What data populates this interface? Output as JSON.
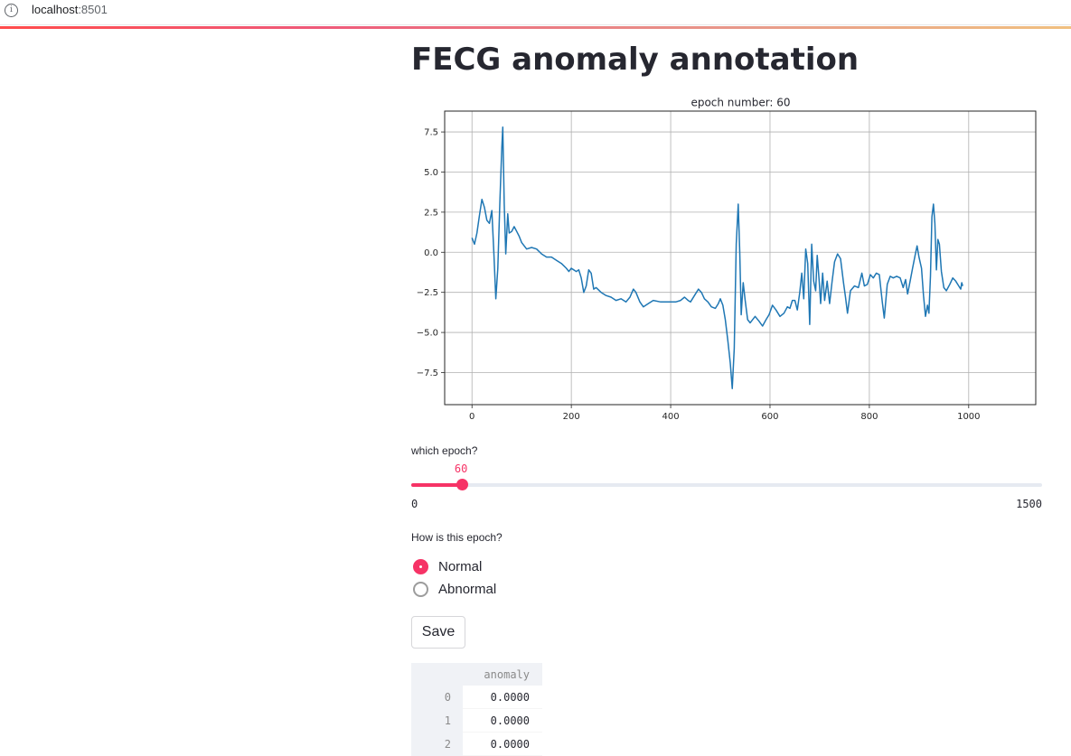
{
  "browser": {
    "url_host": "localhost",
    "url_port": ":8501",
    "info_icon": "info-icon"
  },
  "colors": {
    "accent": "#f63366",
    "line": "#1f77b4"
  },
  "page": {
    "title": "FECG anomaly annotation"
  },
  "chart_data": {
    "type": "line",
    "title": "epoch number: 60",
    "xlabel": "",
    "ylabel": "",
    "xlim": [
      -55,
      1135
    ],
    "ylim": [
      -9.5,
      8.8
    ],
    "xticks": [
      0,
      200,
      400,
      600,
      800,
      1000
    ],
    "yticks": [
      -7.5,
      -5.0,
      -2.5,
      0.0,
      2.5,
      5.0,
      7.5
    ],
    "ytick_labels": [
      "−7.5",
      "−5.0",
      "−2.5",
      "0.0",
      "2.5",
      "5.0",
      "7.5"
    ],
    "grid": true,
    "series": [
      {
        "color": "#1f77b4",
        "points": [
          [
            0,
            0.9
          ],
          [
            5,
            0.5
          ],
          [
            10,
            1.2
          ],
          [
            15,
            2.3
          ],
          [
            20,
            3.3
          ],
          [
            25,
            2.8
          ],
          [
            30,
            2.0
          ],
          [
            35,
            1.8
          ],
          [
            40,
            2.6
          ],
          [
            44,
            0.0
          ],
          [
            48,
            -2.9
          ],
          [
            52,
            -1.0
          ],
          [
            56,
            3.0
          ],
          [
            60,
            6.5
          ],
          [
            62,
            7.8
          ],
          [
            65,
            3.0
          ],
          [
            68,
            -0.1
          ],
          [
            72,
            2.4
          ],
          [
            75,
            1.2
          ],
          [
            80,
            1.3
          ],
          [
            85,
            1.6
          ],
          [
            90,
            1.3
          ],
          [
            95,
            1.0
          ],
          [
            100,
            0.6
          ],
          [
            110,
            0.2
          ],
          [
            120,
            0.3
          ],
          [
            130,
            0.2
          ],
          [
            140,
            -0.1
          ],
          [
            150,
            -0.3
          ],
          [
            160,
            -0.3
          ],
          [
            170,
            -0.5
          ],
          [
            180,
            -0.7
          ],
          [
            190,
            -1.0
          ],
          [
            195,
            -1.2
          ],
          [
            200,
            -1.0
          ],
          [
            210,
            -1.2
          ],
          [
            215,
            -1.1
          ],
          [
            220,
            -1.6
          ],
          [
            225,
            -2.5
          ],
          [
            230,
            -2.1
          ],
          [
            235,
            -1.1
          ],
          [
            240,
            -1.3
          ],
          [
            245,
            -2.3
          ],
          [
            250,
            -2.2
          ],
          [
            260,
            -2.5
          ],
          [
            270,
            -2.7
          ],
          [
            280,
            -2.8
          ],
          [
            290,
            -3.0
          ],
          [
            300,
            -2.9
          ],
          [
            310,
            -3.1
          ],
          [
            318,
            -2.8
          ],
          [
            325,
            -2.3
          ],
          [
            330,
            -2.5
          ],
          [
            338,
            -3.1
          ],
          [
            345,
            -3.4
          ],
          [
            355,
            -3.2
          ],
          [
            365,
            -3.0
          ],
          [
            380,
            -3.1
          ],
          [
            395,
            -3.1
          ],
          [
            410,
            -3.1
          ],
          [
            420,
            -3.0
          ],
          [
            428,
            -2.8
          ],
          [
            435,
            -3.0
          ],
          [
            440,
            -3.1
          ],
          [
            448,
            -2.7
          ],
          [
            456,
            -2.3
          ],
          [
            462,
            -2.5
          ],
          [
            468,
            -2.9
          ],
          [
            475,
            -3.1
          ],
          [
            482,
            -3.4
          ],
          [
            490,
            -3.5
          ],
          [
            496,
            -3.2
          ],
          [
            500,
            -2.9
          ],
          [
            505,
            -3.3
          ],
          [
            510,
            -4.2
          ],
          [
            515,
            -5.5
          ],
          [
            520,
            -6.9
          ],
          [
            524,
            -8.5
          ],
          [
            528,
            -6.0
          ],
          [
            532,
            0.5
          ],
          [
            536,
            3.0
          ],
          [
            539,
            0.0
          ],
          [
            542,
            -3.9
          ],
          [
            546,
            -1.9
          ],
          [
            550,
            -3.0
          ],
          [
            555,
            -4.2
          ],
          [
            560,
            -4.4
          ],
          [
            570,
            -4.0
          ],
          [
            578,
            -4.3
          ],
          [
            585,
            -4.6
          ],
          [
            592,
            -4.2
          ],
          [
            598,
            -3.9
          ],
          [
            605,
            -3.3
          ],
          [
            612,
            -3.6
          ],
          [
            620,
            -4.0
          ],
          [
            628,
            -3.8
          ],
          [
            635,
            -3.4
          ],
          [
            640,
            -3.5
          ],
          [
            645,
            -3.0
          ],
          [
            650,
            -3.0
          ],
          [
            655,
            -3.6
          ],
          [
            660,
            -2.5
          ],
          [
            664,
            -1.3
          ],
          [
            668,
            -2.9
          ],
          [
            672,
            0.2
          ],
          [
            676,
            -0.7
          ],
          [
            680,
            -4.5
          ],
          [
            684,
            0.5
          ],
          [
            688,
            -1.8
          ],
          [
            692,
            -2.4
          ],
          [
            695,
            -0.2
          ],
          [
            699,
            -1.8
          ],
          [
            702,
            -3.2
          ],
          [
            706,
            -1.3
          ],
          [
            710,
            -3.0
          ],
          [
            715,
            -1.8
          ],
          [
            720,
            -3.2
          ],
          [
            725,
            -1.8
          ],
          [
            730,
            -0.6
          ],
          [
            736,
            -0.1
          ],
          [
            742,
            -0.4
          ],
          [
            748,
            -1.9
          ],
          [
            752,
            -2.8
          ],
          [
            756,
            -3.8
          ],
          [
            762,
            -2.4
          ],
          [
            770,
            -2.1
          ],
          [
            778,
            -2.2
          ],
          [
            785,
            -1.3
          ],
          [
            790,
            -2.1
          ],
          [
            796,
            -2.0
          ],
          [
            802,
            -1.4
          ],
          [
            808,
            -1.6
          ],
          [
            814,
            -1.3
          ],
          [
            820,
            -1.4
          ],
          [
            826,
            -3.1
          ],
          [
            830,
            -4.1
          ],
          [
            836,
            -2.0
          ],
          [
            842,
            -1.5
          ],
          [
            848,
            -1.6
          ],
          [
            855,
            -1.5
          ],
          [
            862,
            -1.6
          ],
          [
            868,
            -2.2
          ],
          [
            873,
            -1.7
          ],
          [
            877,
            -2.6
          ],
          [
            882,
            -1.8
          ],
          [
            887,
            -1.0
          ],
          [
            892,
            -0.2
          ],
          [
            896,
            0.4
          ],
          [
            900,
            -0.3
          ],
          [
            905,
            -1.0
          ],
          [
            909,
            -2.7
          ],
          [
            913,
            -4.0
          ],
          [
            917,
            -3.3
          ],
          [
            920,
            -3.8
          ],
          [
            923,
            -1.5
          ],
          [
            926,
            2.2
          ],
          [
            929,
            3.0
          ],
          [
            932,
            1.8
          ],
          [
            935,
            -1.1
          ],
          [
            938,
            0.8
          ],
          [
            941,
            0.5
          ],
          [
            945,
            -1.2
          ],
          [
            950,
            -2.2
          ],
          [
            955,
            -2.4
          ],
          [
            962,
            -2.0
          ],
          [
            968,
            -1.6
          ],
          [
            974,
            -1.8
          ],
          [
            980,
            -2.1
          ],
          [
            984,
            -2.3
          ],
          [
            986,
            -1.9
          ],
          [
            988,
            -2.1
          ]
        ]
      }
    ]
  },
  "slider": {
    "label": "which epoch?",
    "value": "60",
    "value_num": 60,
    "min": "0",
    "max": "1500",
    "min_num": 0,
    "max_num": 1500
  },
  "radio": {
    "label": "How is this epoch?",
    "options": [
      "Normal",
      "Abnormal"
    ],
    "selected": "Normal"
  },
  "button": {
    "save_label": "Save"
  },
  "table": {
    "columns": [
      "anomaly"
    ],
    "rows": [
      {
        "index": "0",
        "anomaly": "0.0000"
      },
      {
        "index": "1",
        "anomaly": "0.0000"
      },
      {
        "index": "2",
        "anomaly": "0.0000"
      }
    ]
  }
}
